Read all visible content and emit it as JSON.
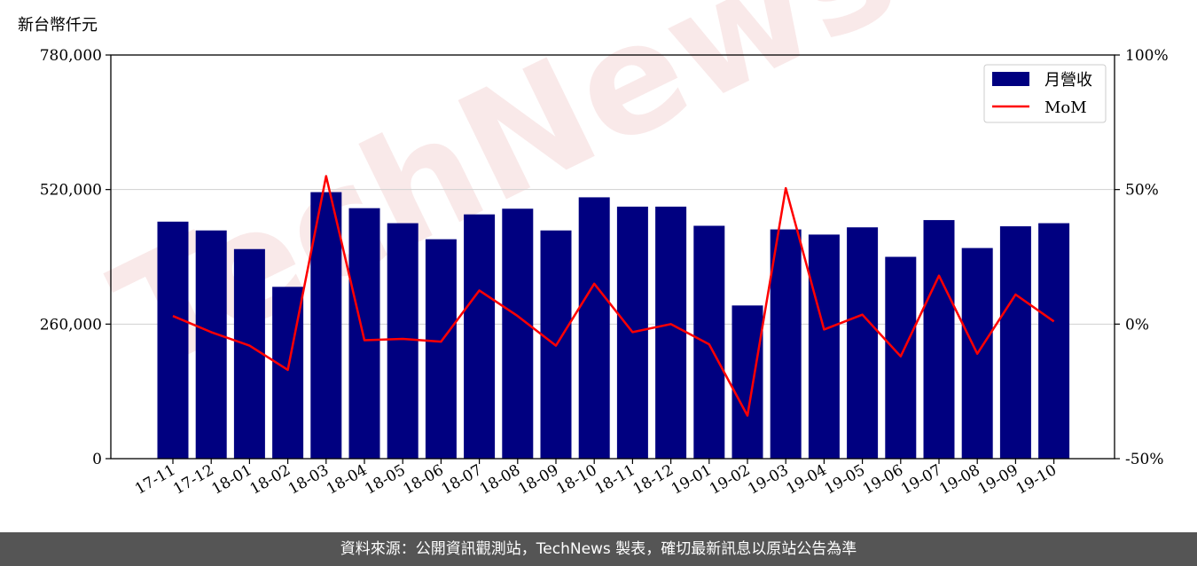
{
  "chart_data": {
    "type": "bar",
    "y_unit_label": "新台幣仟元",
    "categories": [
      "17-11",
      "17-12",
      "18-01",
      "18-02",
      "18-03",
      "18-04",
      "18-05",
      "18-06",
      "18-07",
      "18-08",
      "18-09",
      "18-10",
      "18-11",
      "18-12",
      "19-01",
      "19-02",
      "19-03",
      "19-04",
      "19-05",
      "19-06",
      "19-07",
      "19-08",
      "19-09",
      "19-10"
    ],
    "series": [
      {
        "name": "月營收",
        "type": "bar",
        "axis": "left",
        "color": "#000080",
        "values": [
          458000,
          441000,
          405000,
          332000,
          515000,
          484000,
          455000,
          424000,
          472000,
          483000,
          441000,
          505000,
          487000,
          487000,
          450000,
          296000,
          443000,
          433000,
          447000,
          390000,
          461000,
          407000,
          449000,
          455000
        ]
      },
      {
        "name": "MoM",
        "type": "line",
        "axis": "right",
        "color": "#ff0000",
        "values": [
          3,
          -3,
          -8,
          -17,
          55,
          -6,
          -5.5,
          -6.5,
          12.5,
          3,
          -8,
          15,
          -3,
          0,
          -7.5,
          -34,
          50.5,
          -2,
          3.5,
          -12,
          18,
          -11,
          11,
          1
        ]
      }
    ],
    "y_left": {
      "min": 0,
      "max": 780000,
      "ticks": [
        0,
        260000,
        520000,
        780000
      ],
      "tick_labels": [
        "0",
        "260,000",
        "520,000",
        "780,000"
      ]
    },
    "y_right": {
      "min": -50,
      "max": 100,
      "ticks": [
        -50,
        0,
        50,
        100
      ],
      "tick_labels": [
        "-50%",
        "0%",
        "50%",
        "100%"
      ]
    },
    "grid": "horizontal",
    "legend_position": "top-right"
  },
  "watermark": "TechNews",
  "footer": {
    "text": "資料來源：公開資訊觀測站，TechNews 製表，確切最新訊息以原站公告為準"
  }
}
